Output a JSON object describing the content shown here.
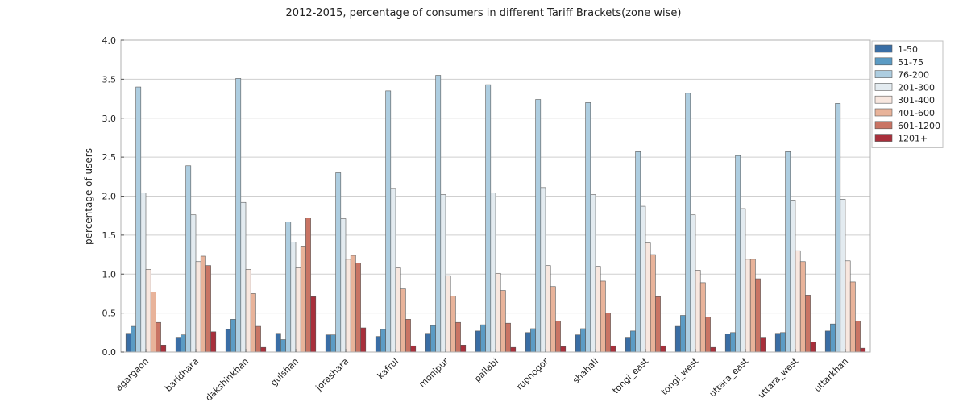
{
  "chart_data": {
    "type": "bar",
    "title": "2012-2015, percentage of consumers in different Tariff Brackets(zone wise)",
    "xlabel": "",
    "ylabel": "percentage of users",
    "ylim": [
      0,
      4.0
    ],
    "yticks": [
      "0.0",
      "0.5",
      "1.0",
      "1.5",
      "2.0",
      "2.5",
      "3.0",
      "3.5",
      "4.0"
    ],
    "grid": true,
    "legend_position": "right",
    "categories": [
      "agargaon",
      "baridhara",
      "dakshinkhan",
      "gulshan",
      "jorashara",
      "kafrul",
      "monipur",
      "pallabi",
      "rupnogor",
      "shahali",
      "tongi_east",
      "tongi_west",
      "uttara_east",
      "uttara_west",
      "uttarkhan"
    ],
    "series": [
      {
        "name": "1-50",
        "color": "#3a6ea5",
        "values": [
          0.24,
          0.19,
          0.29,
          0.24,
          0.22,
          0.2,
          0.24,
          0.27,
          0.25,
          0.22,
          0.19,
          0.33,
          0.23,
          0.24,
          0.27
        ]
      },
      {
        "name": "51-75",
        "color": "#5b9bc4",
        "values": [
          0.33,
          0.22,
          0.42,
          0.16,
          0.22,
          0.29,
          0.34,
          0.35,
          0.3,
          0.3,
          0.27,
          0.47,
          0.25,
          0.25,
          0.36
        ]
      },
      {
        "name": "76-200",
        "color": "#adcde0",
        "values": [
          3.4,
          2.39,
          3.51,
          1.67,
          2.3,
          3.35,
          3.55,
          3.43,
          3.24,
          3.2,
          2.57,
          3.32,
          2.52,
          2.57,
          3.19
        ]
      },
      {
        "name": "201-300",
        "color": "#e3ebf0",
        "values": [
          2.04,
          1.76,
          1.92,
          1.41,
          1.71,
          2.1,
          2.02,
          2.04,
          2.11,
          2.02,
          1.87,
          1.76,
          1.84,
          1.95,
          1.96
        ]
      },
      {
        "name": "301-400",
        "color": "#f8e7df",
        "values": [
          1.06,
          1.16,
          1.06,
          1.08,
          1.19,
          1.08,
          0.98,
          1.01,
          1.11,
          1.1,
          1.4,
          1.05,
          1.19,
          1.3,
          1.17
        ]
      },
      {
        "name": "401-600",
        "color": "#e8b39a",
        "values": [
          0.77,
          1.23,
          0.75,
          1.36,
          1.24,
          0.81,
          0.72,
          0.79,
          0.84,
          0.91,
          1.25,
          0.89,
          1.19,
          1.16,
          0.9
        ]
      },
      {
        "name": "601-1200",
        "color": "#c97464",
        "values": [
          0.38,
          1.11,
          0.33,
          1.72,
          1.14,
          0.42,
          0.38,
          0.37,
          0.4,
          0.5,
          0.71,
          0.45,
          0.94,
          0.73,
          0.4
        ]
      },
      {
        "name": "1201+",
        "color": "#a82f3b",
        "values": [
          0.09,
          0.26,
          0.06,
          0.71,
          0.31,
          0.08,
          0.09,
          0.06,
          0.07,
          0.08,
          0.08,
          0.06,
          0.19,
          0.13,
          0.05
        ]
      }
    ]
  }
}
